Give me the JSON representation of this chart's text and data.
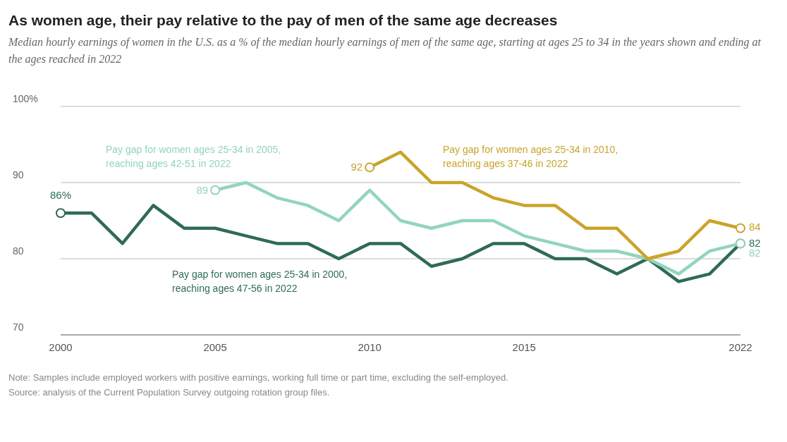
{
  "chart_data": {
    "type": "line",
    "title": "As women age, their pay relative to the pay of men of the same age decreases",
    "subtitle": "Median hourly earnings of women in the U.S. as a % of the median hourly earnings of men of the same age, starting at ages 25 to 34 in the years shown and ending at the ages reached in 2022",
    "x": [
      2000,
      2001,
      2002,
      2003,
      2004,
      2005,
      2006,
      2007,
      2008,
      2009,
      2010,
      2011,
      2012,
      2013,
      2014,
      2015,
      2016,
      2017,
      2018,
      2019,
      2020,
      2021,
      2022
    ],
    "series": [
      {
        "name": "Pay gap for women ages 25-34 in 2000,\nreaching ages 47-56 in 2022",
        "color": "#2e6b57",
        "values": [
          86,
          86,
          82,
          87,
          84,
          84,
          83,
          82,
          82,
          80,
          82,
          82,
          79,
          80,
          82,
          82,
          80,
          80,
          78,
          80,
          77,
          78,
          82
        ],
        "value_labels": [
          "86%",
          null,
          null,
          null,
          null,
          null,
          null,
          null,
          null,
          null,
          null,
          null,
          null,
          null,
          null,
          null,
          null,
          null,
          null,
          null,
          null,
          null,
          "82"
        ]
      },
      {
        "name": "Pay gap for women ages 25-34 in 2005,\nreaching ages 42-51 in 2022",
        "color": "#92d5bb",
        "x": [
          2005,
          2006,
          2007,
          2008,
          2009,
          2010,
          2011,
          2012,
          2013,
          2014,
          2015,
          2016,
          2017,
          2018,
          2019,
          2020,
          2021,
          2022
        ],
        "values": [
          89,
          90,
          88,
          87,
          85,
          89,
          85,
          84,
          85,
          85,
          83,
          82,
          81,
          81,
          80,
          78,
          81,
          82
        ],
        "value_labels": [
          "89",
          null,
          null,
          null,
          null,
          null,
          null,
          null,
          null,
          null,
          null,
          null,
          null,
          null,
          null,
          null,
          null,
          "82"
        ]
      },
      {
        "name": "Pay gap for women ages 25-34 in 2010,\nreaching ages 37-46 in 2022",
        "color": "#c9a42a",
        "x": [
          2010,
          2011,
          2012,
          2013,
          2014,
          2015,
          2016,
          2017,
          2018,
          2019,
          2020,
          2021,
          2022
        ],
        "values": [
          92,
          94,
          90,
          90,
          88,
          87,
          87,
          84,
          84,
          80,
          81,
          85,
          84
        ],
        "value_labels": [
          "92",
          null,
          null,
          null,
          null,
          null,
          null,
          null,
          null,
          null,
          null,
          null,
          "84"
        ]
      }
    ],
    "xlim": [
      2000,
      2022
    ],
    "xticks": [
      2000,
      2005,
      2010,
      2015,
      2022
    ],
    "ylim": [
      70,
      100
    ],
    "yticks": [
      70,
      80,
      90,
      {
        "value": 100,
        "label": "100%"
      }
    ],
    "grid": "y",
    "marker": "none",
    "line_style": "solid",
    "annotations": [
      "Note: Samples include employed workers with positive earnings, working full time or part time, excluding the self-employed.",
      "Source: analysis of the Current Population Survey outgoing rotation group files."
    ]
  }
}
